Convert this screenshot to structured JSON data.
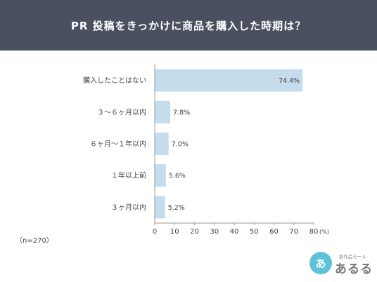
{
  "header": {
    "title": "PR 投稿をきっかけに商品を購入した時期は？"
  },
  "note": "（n=270）",
  "logo": {
    "mark": "あ",
    "subtitle": "創作品モール",
    "name": "あるる"
  },
  "colors": {
    "header_bg": "#4a5060",
    "bar": "#c5dcec",
    "axis": "#9a9a9a",
    "logo_circle": "#5cc3d8"
  },
  "chart_data": {
    "type": "bar",
    "orientation": "horizontal",
    "title": "PR 投稿をきっかけに商品を購入した時期は？",
    "categories": [
      "購入したことはない",
      "３～６ヶ月以内",
      "６ヶ月～１年以内",
      "１年以上前",
      "３ヶ月以内"
    ],
    "values": [
      74.4,
      7.8,
      7.0,
      5.6,
      5.2
    ],
    "value_labels": [
      "74.4%",
      "7.8%",
      "7.0%",
      "5.6%",
      "5.2%"
    ],
    "xlim": [
      0,
      80
    ],
    "xticks": [
      0,
      10,
      20,
      30,
      40,
      50,
      60,
      70,
      80
    ],
    "x_unit": "(%)",
    "grid": false,
    "legend": "none"
  }
}
